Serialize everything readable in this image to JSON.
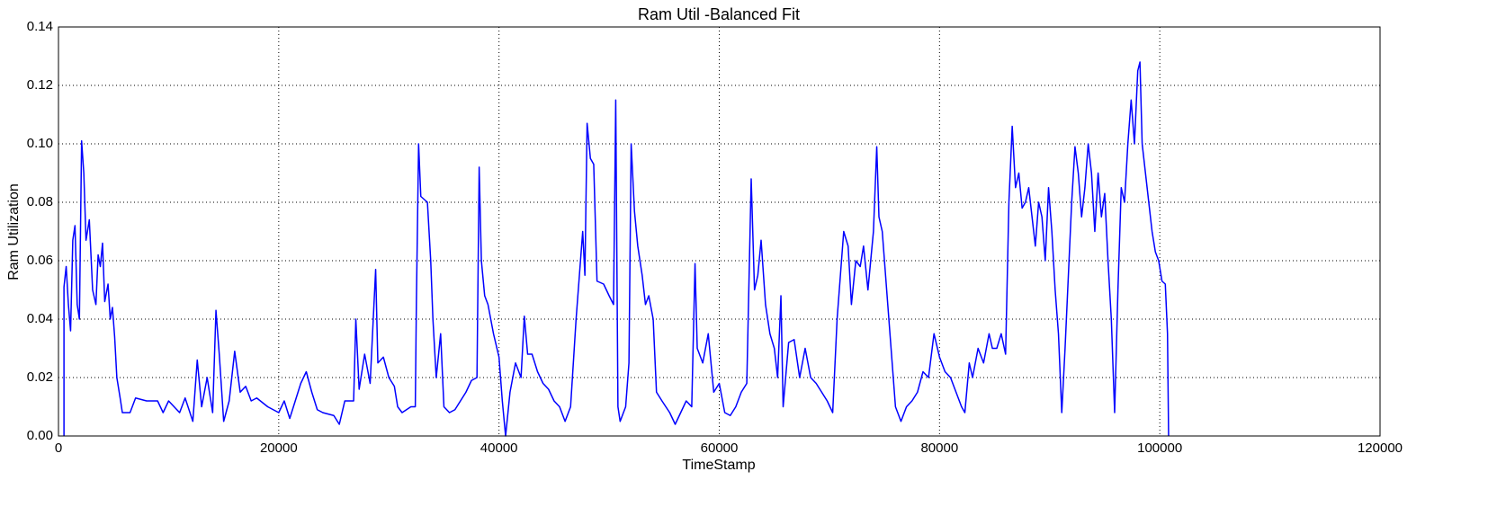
{
  "chart_data": {
    "type": "line",
    "title": "Ram Util -Balanced Fit",
    "x_label": "TimeStamp",
    "y_label": "Ram Utilization",
    "color": "#0000ff",
    "grid": true,
    "xlim": [
      0,
      120000
    ],
    "xticks": [
      0,
      20000,
      40000,
      60000,
      80000,
      100000,
      120000
    ],
    "ylim": [
      0,
      0.14
    ],
    "yticks": [
      {
        "value": 0,
        "label": "0.00"
      },
      {
        "value": 0.02,
        "label": "0.02"
      },
      {
        "value": 0.04,
        "label": "0.04"
      },
      {
        "value": 0.06,
        "label": "0.06"
      },
      {
        "value": 0.08,
        "label": "0.08"
      },
      {
        "value": 0.1,
        "label": "0.10"
      },
      {
        "value": 0.12,
        "label": "0.12"
      },
      {
        "value": 0.14,
        "label": "0.14"
      }
    ],
    "x": [
      500,
      500,
      700,
      900,
      1100,
      1300,
      1500,
      1700,
      1900,
      2100,
      2300,
      2500,
      2800,
      3100,
      3400,
      3600,
      3800,
      4000,
      4200,
      4500,
      4700,
      4900,
      5100,
      5300,
      5600,
      5800,
      6500,
      7000,
      8000,
      9000,
      9500,
      10000,
      11000,
      11500,
      12200,
      12600,
      13000,
      13500,
      14000,
      14300,
      14600,
      15000,
      15500,
      16000,
      16500,
      17000,
      17500,
      18000,
      19000,
      20000,
      20500,
      21000,
      21500,
      22000,
      22500,
      23000,
      23500,
      24000,
      25000,
      25500,
      26000,
      26800,
      27000,
      27300,
      27800,
      28300,
      28800,
      29000,
      29500,
      30000,
      30500,
      30800,
      31200,
      32000,
      32400,
      32500,
      32700,
      32900,
      33500,
      33800,
      34000,
      34300,
      34700,
      35000,
      35500,
      36000,
      36500,
      37000,
      37500,
      38000,
      38200,
      38400,
      38700,
      39000,
      39500,
      40000,
      40300,
      40600,
      41000,
      41500,
      42000,
      42300,
      42600,
      43000,
      43500,
      44000,
      44500,
      45000,
      45500,
      46000,
      46500,
      47000,
      47300,
      47600,
      47800,
      48000,
      48300,
      48600,
      48900,
      49500,
      50000,
      50400,
      50600,
      50800,
      51000,
      51500,
      51800,
      52000,
      52300,
      52600,
      53000,
      53300,
      53600,
      54000,
      54300,
      54800,
      55500,
      56000,
      56500,
      57000,
      57500,
      57800,
      58000,
      58500,
      59000,
      59500,
      60000,
      60500,
      61000,
      61500,
      62000,
      62500,
      62900,
      63200,
      63500,
      63800,
      64200,
      64600,
      65000,
      65300,
      65600,
      65800,
      66300,
      66800,
      67300,
      67800,
      68300,
      68800,
      69300,
      69800,
      70300,
      70700,
      71000,
      71300,
      71700,
      72000,
      72400,
      72800,
      73100,
      73500,
      74000,
      74300,
      74500,
      74800,
      75000,
      75300,
      75600,
      76000,
      76500,
      77000,
      77500,
      78000,
      78500,
      79000,
      79500,
      80000,
      80500,
      81000,
      81500,
      82000,
      82300,
      82700,
      83000,
      83500,
      84000,
      84500,
      84800,
      85200,
      85600,
      86000,
      86300,
      86600,
      86900,
      87200,
      87500,
      87800,
      88100,
      88400,
      88700,
      89000,
      89300,
      89600,
      89900,
      90200,
      90500,
      90800,
      91100,
      91400,
      91700,
      92000,
      92300,
      92600,
      92900,
      93200,
      93500,
      93800,
      94100,
      94400,
      94700,
      95000,
      95300,
      95600,
      95900,
      96200,
      96500,
      96800,
      97100,
      97400,
      97700,
      98000,
      98200,
      98400,
      98700,
      99000,
      99300,
      99600,
      99900,
      100200,
      100500,
      100700,
      100800
    ],
    "values": [
      0,
      0.051,
      0.058,
      0.045,
      0.036,
      0.067,
      0.072,
      0.045,
      0.04,
      0.101,
      0.09,
      0.067,
      0.074,
      0.05,
      0.045,
      0.062,
      0.058,
      0.066,
      0.046,
      0.052,
      0.04,
      0.044,
      0.034,
      0.02,
      0.013,
      0.008,
      0.008,
      0.013,
      0.012,
      0.012,
      0.008,
      0.012,
      0.008,
      0.013,
      0.005,
      0.026,
      0.01,
      0.02,
      0.008,
      0.043,
      0.028,
      0.005,
      0.012,
      0.029,
      0.015,
      0.017,
      0.012,
      0.013,
      0.01,
      0.008,
      0.012,
      0.006,
      0.012,
      0.018,
      0.022,
      0.015,
      0.009,
      0.008,
      0.007,
      0.004,
      0.012,
      0.012,
      0.04,
      0.016,
      0.028,
      0.018,
      0.057,
      0.025,
      0.027,
      0.02,
      0.017,
      0.01,
      0.008,
      0.01,
      0.01,
      0.046,
      0.1,
      0.082,
      0.08,
      0.06,
      0.04,
      0.02,
      0.035,
      0.01,
      0.008,
      0.009,
      0.012,
      0.015,
      0.019,
      0.02,
      0.092,
      0.06,
      0.048,
      0.045,
      0.035,
      0.027,
      0.012,
      0,
      0.015,
      0.025,
      0.02,
      0.041,
      0.028,
      0.028,
      0.022,
      0.018,
      0.016,
      0.012,
      0.01,
      0.005,
      0.01,
      0.04,
      0.055,
      0.07,
      0.055,
      0.107,
      0.095,
      0.093,
      0.053,
      0.052,
      0.048,
      0.045,
      0.115,
      0.01,
      0.005,
      0.01,
      0.025,
      0.1,
      0.077,
      0.065,
      0.055,
      0.045,
      0.048,
      0.04,
      0.015,
      0.012,
      0.008,
      0.004,
      0.008,
      0.012,
      0.01,
      0.059,
      0.03,
      0.025,
      0.035,
      0.015,
      0.018,
      0.008,
      0.007,
      0.01,
      0.015,
      0.018,
      0.088,
      0.05,
      0.055,
      0.067,
      0.045,
      0.035,
      0.03,
      0.02,
      0.048,
      0.01,
      0.032,
      0.033,
      0.02,
      0.03,
      0.02,
      0.018,
      0.015,
      0.012,
      0.008,
      0.04,
      0.055,
      0.07,
      0.065,
      0.045,
      0.06,
      0.058,
      0.065,
      0.05,
      0.07,
      0.099,
      0.075,
      0.07,
      0.06,
      0.045,
      0.03,
      0.01,
      0.005,
      0.01,
      0.012,
      0.015,
      0.022,
      0.02,
      0.035,
      0.027,
      0.022,
      0.02,
      0.015,
      0.01,
      0.008,
      0.025,
      0.02,
      0.03,
      0.025,
      0.035,
      0.03,
      0.03,
      0.035,
      0.028,
      0.08,
      0.106,
      0.085,
      0.09,
      0.078,
      0.08,
      0.085,
      0.075,
      0.065,
      0.08,
      0.075,
      0.06,
      0.085,
      0.07,
      0.05,
      0.035,
      0.008,
      0.03,
      0.055,
      0.08,
      0.099,
      0.09,
      0.075,
      0.085,
      0.1,
      0.09,
      0.07,
      0.09,
      0.075,
      0.083,
      0.06,
      0.04,
      0.008,
      0.05,
      0.085,
      0.08,
      0.1,
      0.115,
      0.1,
      0.125,
      0.128,
      0.1,
      0.09,
      0.08,
      0.07,
      0.063,
      0.06,
      0.053,
      0.052,
      0.035,
      0
    ]
  }
}
